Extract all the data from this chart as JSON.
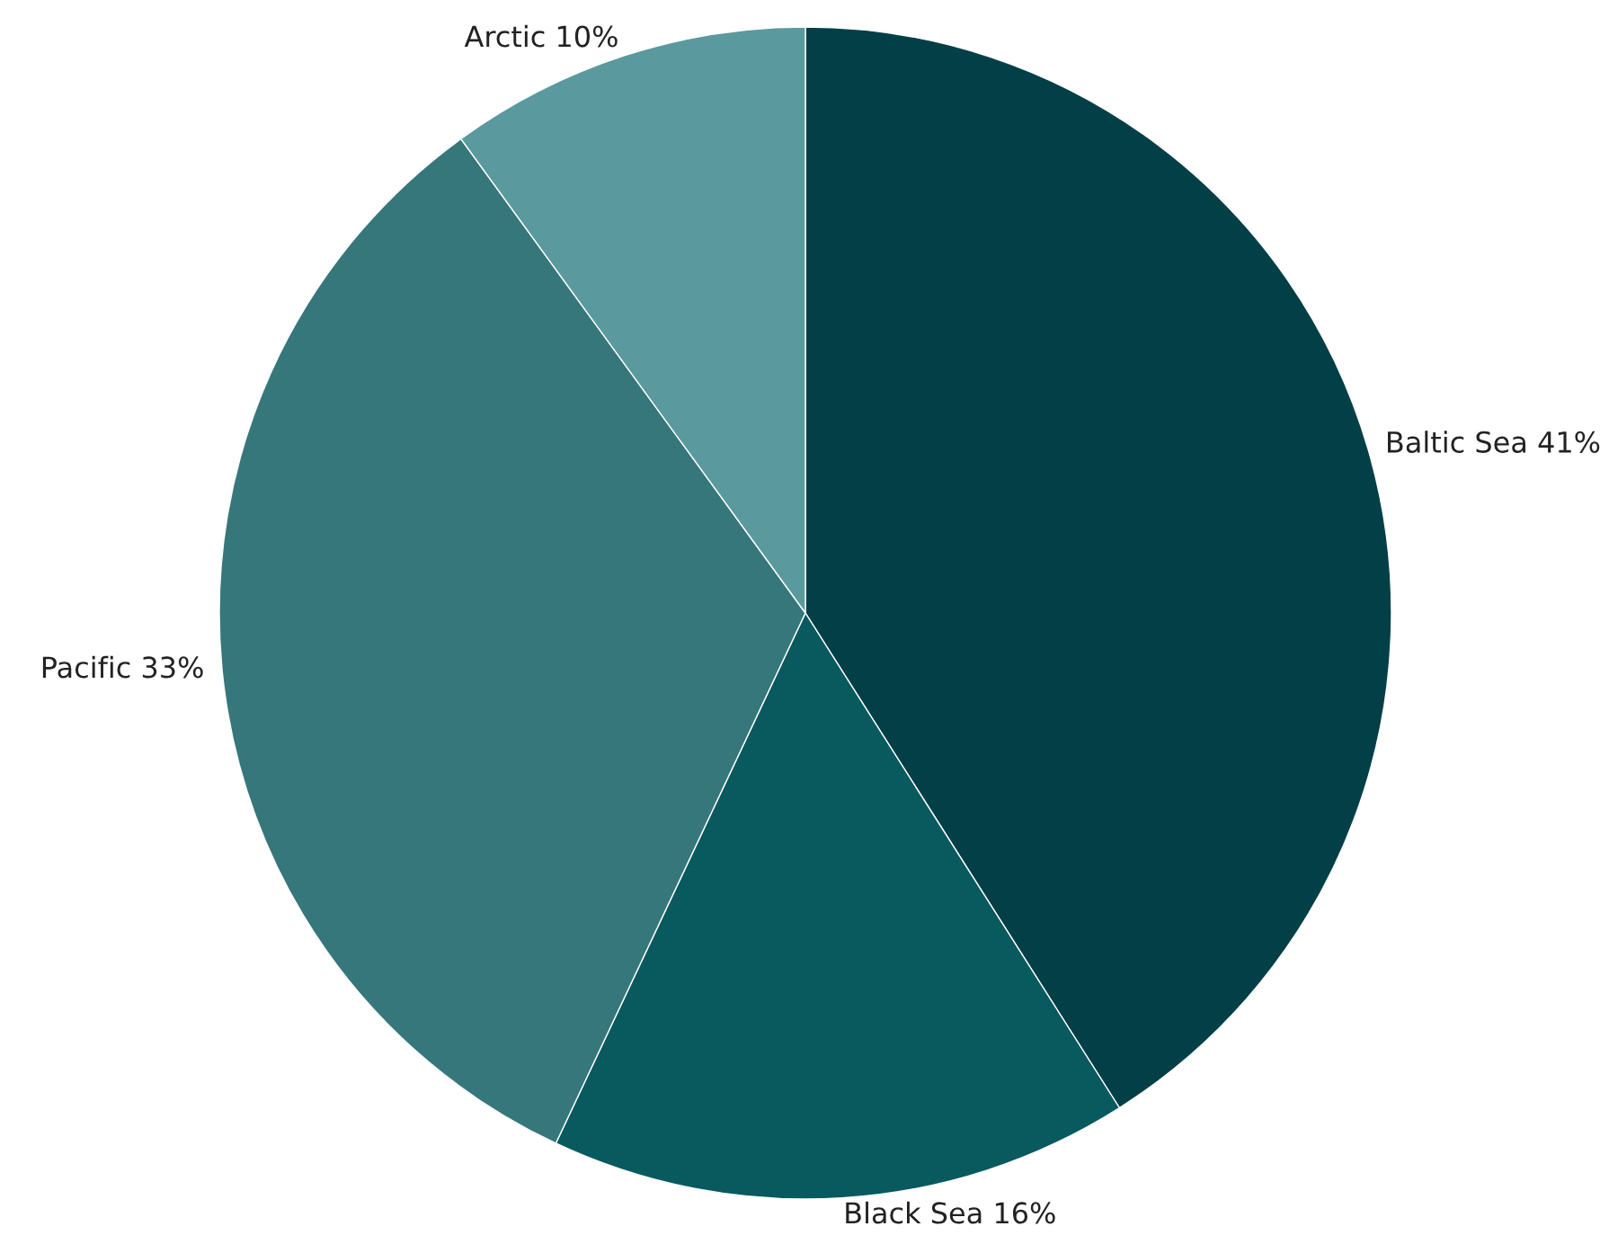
{
  "chart_data": {
    "type": "pie",
    "categories": [
      "Baltic Sea",
      "Black Sea",
      "Pacific",
      "Arctic"
    ],
    "values": [
      41,
      16,
      33,
      10
    ],
    "value_labels": [
      "41%",
      "16%",
      "33%",
      "10%"
    ],
    "colors": [
      "#033f47",
      "#085a5f",
      "#36777b",
      "#5a9a9f"
    ]
  }
}
